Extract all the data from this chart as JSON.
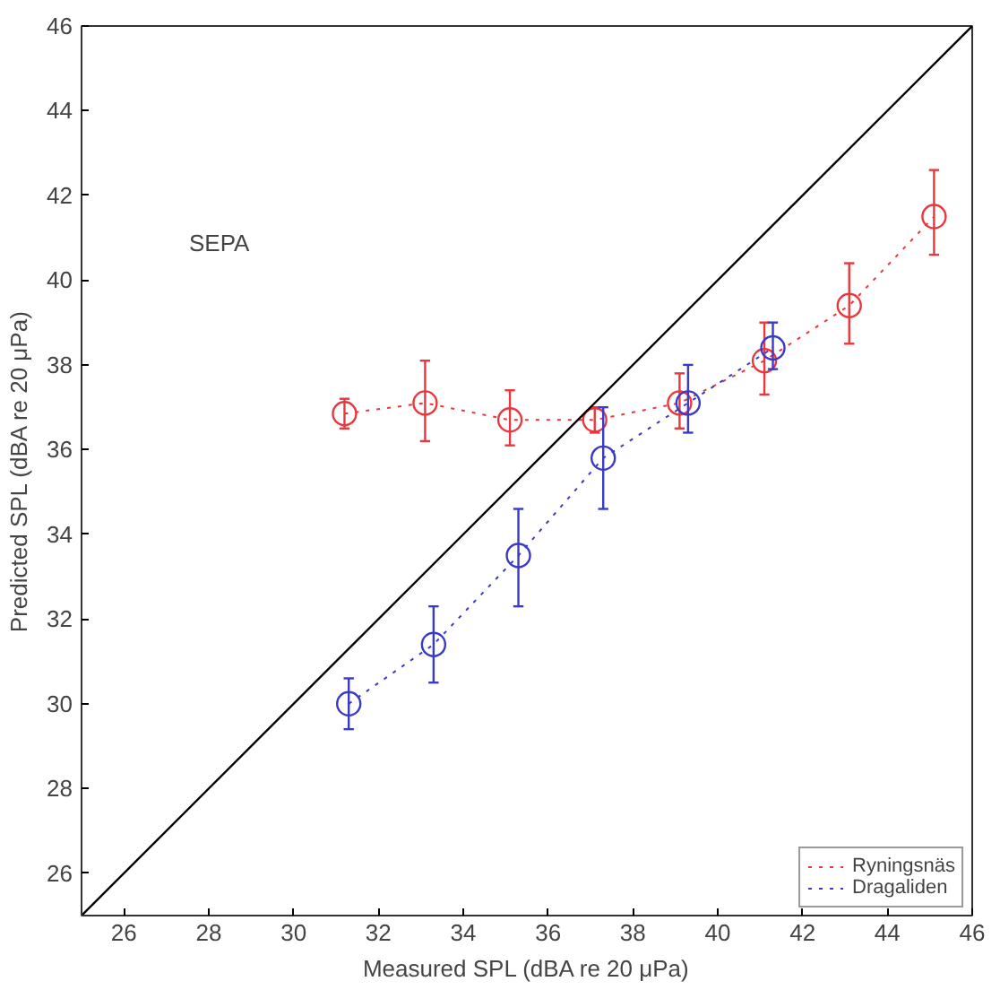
{
  "chart_data": {
    "type": "line",
    "xlabel": "Measured SPL (dBA re 20 μPa)",
    "ylabel": "Predicted SPL (dBA re 20 μPa)",
    "xlim": [
      25,
      46
    ],
    "ylim": [
      25,
      46
    ],
    "xticks": [
      26,
      28,
      30,
      32,
      34,
      36,
      38,
      40,
      42,
      44,
      46
    ],
    "yticks": [
      26,
      28,
      30,
      32,
      34,
      36,
      38,
      40,
      42,
      44,
      46
    ],
    "grid": false,
    "legend": "bottom right",
    "marker": "circle",
    "line_style": "dotted",
    "annotations": [
      "SEPA"
    ],
    "series": [
      {
        "name": "Ryningsnäs",
        "color": "#e8383d",
        "x": [
          31.2,
          33.1,
          35.1,
          37.1,
          39.1,
          41.1,
          43.1,
          45.1
        ],
        "values": [
          36.85,
          37.1,
          36.7,
          36.7,
          37.1,
          38.1,
          39.4,
          41.5
        ],
        "errors": [
          [
            36.5,
            37.2
          ],
          [
            36.2,
            38.1
          ],
          [
            36.1,
            37.4
          ],
          [
            36.4,
            37.0
          ],
          [
            36.5,
            37.8
          ],
          [
            37.3,
            39.0
          ],
          [
            38.5,
            40.4
          ],
          [
            40.6,
            42.6
          ]
        ]
      },
      {
        "name": "Dragaliden",
        "color": "#3a3ac8",
        "x": [
          31.3,
          33.3,
          35.3,
          37.3,
          39.3,
          41.3
        ],
        "values": [
          30.0,
          31.4,
          33.5,
          35.8,
          37.1,
          38.4
        ],
        "errors": [
          [
            29.4,
            30.6
          ],
          [
            30.5,
            32.3
          ],
          [
            32.3,
            34.6
          ],
          [
            34.6,
            37.0
          ],
          [
            36.4,
            38.0
          ],
          [
            37.9,
            39.0
          ]
        ]
      },
      {
        "type": "line",
        "color": "#000000",
        "line_style": "solid",
        "marker": "none",
        "x": [
          25,
          46
        ],
        "values": [
          25,
          46
        ]
      }
    ]
  }
}
